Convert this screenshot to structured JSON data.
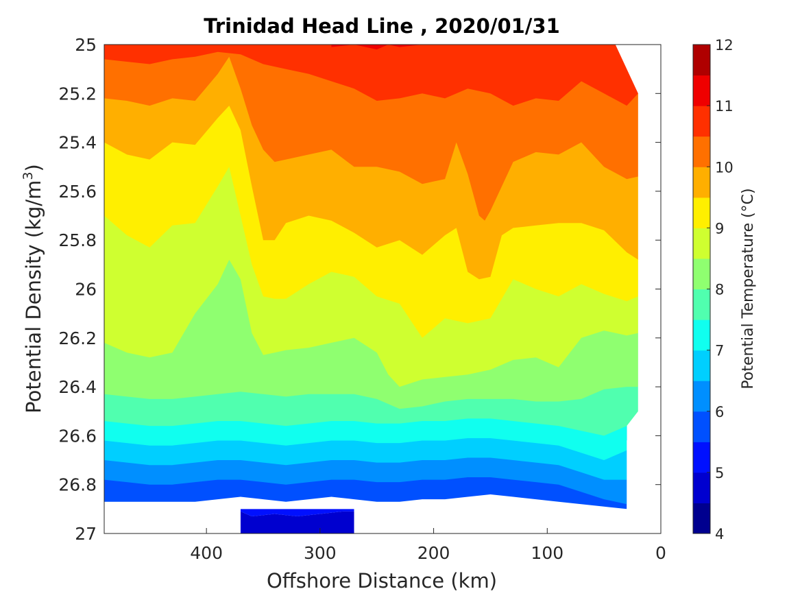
{
  "chart_data": {
    "type": "contour",
    "title": "Trinidad Head Line , 2020/01/31",
    "xlabel": "Offshore Distance (km)",
    "ylabel_main": "Potential Density (kg/m",
    "ylabel_sup": "3",
    "ylabel_end": ")",
    "colorbar_label": "Potential Temperature (°C)",
    "x_reversed": true,
    "xlim": [
      0,
      490
    ],
    "ylim": [
      25,
      27
    ],
    "y_reversed": true,
    "grid": false,
    "xticks": [
      400,
      300,
      200,
      100,
      0
    ],
    "xtick_labels": [
      "400",
      "300",
      "200",
      "100",
      "0"
    ],
    "yticks": [
      25,
      25.2,
      25.4,
      25.6,
      25.8,
      26,
      26.2,
      26.4,
      26.6,
      26.8,
      27
    ],
    "ytick_labels": [
      "25",
      "25.2",
      "25.4",
      "25.6",
      "25.8",
      "26",
      "26.2",
      "26.4",
      "26.6",
      "26.8",
      "27"
    ],
    "colorbar_ticks": [
      "12",
      "11",
      "10",
      "9",
      "8",
      "7",
      "6",
      "5",
      "4"
    ],
    "levels": [
      4,
      4.5,
      5,
      5.5,
      6,
      6.5,
      7,
      7.5,
      8,
      8.5,
      9,
      9.5,
      10,
      10.5,
      11,
      11.5,
      12
    ],
    "level_colors": [
      "#00008f",
      "#0000cf",
      "#0010ff",
      "#0050ff",
      "#008fff",
      "#00cfff",
      "#10ffef",
      "#50ffaf",
      "#8fff70",
      "#cfff30",
      "#ffef00",
      "#ffaf00",
      "#ff7000",
      "#ff3000",
      "#ef0000",
      "#af0000"
    ],
    "contours": [
      {
        "level": 5.5,
        "x": [
          490,
          470,
          450,
          430,
          410,
          390,
          370,
          350,
          330,
          310,
          290,
          270,
          250,
          230,
          210,
          190,
          170,
          150,
          130,
          110,
          90,
          70,
          50,
          30
        ],
        "y": [
          26.87,
          26.87,
          26.87,
          26.87,
          26.87,
          26.86,
          26.85,
          26.86,
          26.87,
          26.86,
          26.85,
          26.86,
          26.87,
          26.87,
          26.86,
          26.86,
          26.85,
          26.84,
          26.85,
          26.86,
          26.87,
          26.88,
          26.89,
          26.9
        ]
      },
      {
        "level": 6.0,
        "x": [
          490,
          470,
          450,
          430,
          410,
          390,
          370,
          350,
          330,
          310,
          290,
          270,
          250,
          230,
          210,
          190,
          170,
          150,
          130,
          110,
          90,
          70,
          50,
          30
        ],
        "y": [
          26.78,
          26.79,
          26.8,
          26.8,
          26.79,
          26.78,
          26.78,
          26.79,
          26.8,
          26.79,
          26.78,
          26.78,
          26.79,
          26.79,
          26.78,
          26.78,
          26.77,
          26.77,
          26.78,
          26.79,
          26.8,
          26.83,
          26.86,
          26.88
        ]
      },
      {
        "level": 6.5,
        "x": [
          490,
          470,
          450,
          430,
          410,
          390,
          370,
          350,
          330,
          310,
          290,
          270,
          250,
          230,
          210,
          190,
          170,
          150,
          130,
          110,
          90,
          70,
          50,
          30
        ],
        "y": [
          26.7,
          26.71,
          26.72,
          26.72,
          26.71,
          26.7,
          26.7,
          26.71,
          26.72,
          26.71,
          26.7,
          26.7,
          26.71,
          26.71,
          26.7,
          26.7,
          26.69,
          26.69,
          26.7,
          26.71,
          26.72,
          26.75,
          26.78,
          26.78
        ]
      },
      {
        "level": 7.0,
        "x": [
          490,
          470,
          450,
          430,
          410,
          390,
          370,
          350,
          330,
          310,
          290,
          270,
          250,
          230,
          210,
          190,
          170,
          150,
          130,
          110,
          90,
          70,
          50,
          30
        ],
        "y": [
          26.62,
          26.63,
          26.64,
          26.64,
          26.63,
          26.62,
          26.62,
          26.63,
          26.64,
          26.63,
          26.62,
          26.62,
          26.63,
          26.63,
          26.62,
          26.62,
          26.61,
          26.61,
          26.62,
          26.63,
          26.64,
          26.67,
          26.7,
          26.66
        ]
      },
      {
        "level": 7.5,
        "x": [
          490,
          470,
          450,
          430,
          410,
          390,
          370,
          350,
          330,
          310,
          290,
          270,
          250,
          230,
          210,
          190,
          170,
          150,
          130,
          110,
          90,
          70,
          50,
          30,
          20
        ],
        "y": [
          26.54,
          26.55,
          26.56,
          26.56,
          26.55,
          26.54,
          26.54,
          26.55,
          26.56,
          26.55,
          26.54,
          26.54,
          26.55,
          26.55,
          26.54,
          26.54,
          26.53,
          26.53,
          26.54,
          26.55,
          26.56,
          26.58,
          26.6,
          26.56,
          26.5
        ]
      },
      {
        "level": 8.0,
        "x": [
          490,
          470,
          450,
          430,
          410,
          390,
          370,
          350,
          330,
          310,
          290,
          270,
          250,
          230,
          210,
          190,
          170,
          150,
          130,
          110,
          90,
          70,
          50,
          30,
          20
        ],
        "y": [
          26.43,
          26.44,
          26.45,
          26.45,
          26.44,
          26.43,
          26.42,
          26.43,
          26.44,
          26.43,
          26.43,
          26.43,
          26.45,
          26.49,
          26.48,
          26.46,
          26.45,
          26.45,
          26.45,
          26.46,
          26.46,
          26.45,
          26.41,
          26.4,
          26.4
        ]
      },
      {
        "level": 8.5,
        "x": [
          490,
          470,
          450,
          430,
          410,
          390,
          380,
          370,
          360,
          350,
          340,
          330,
          310,
          290,
          270,
          250,
          240,
          230,
          210,
          190,
          170,
          150,
          130,
          110,
          90,
          70,
          50,
          30,
          20
        ],
        "y": [
          26.22,
          26.26,
          26.28,
          26.26,
          26.1,
          25.98,
          25.88,
          25.96,
          26.18,
          26.27,
          26.26,
          26.25,
          26.24,
          26.22,
          26.2,
          26.26,
          26.35,
          26.4,
          26.37,
          26.36,
          26.35,
          26.33,
          26.29,
          26.28,
          26.32,
          26.2,
          26.17,
          26.19,
          26.18
        ]
      },
      {
        "level": 9.0,
        "x": [
          490,
          470,
          450,
          430,
          410,
          390,
          380,
          370,
          360,
          350,
          340,
          330,
          310,
          290,
          270,
          250,
          230,
          210,
          190,
          170,
          150,
          130,
          110,
          90,
          70,
          50,
          30,
          20
        ],
        "y": [
          25.7,
          25.78,
          25.83,
          25.74,
          25.73,
          25.58,
          25.5,
          25.7,
          25.9,
          26.03,
          26.04,
          26.04,
          25.98,
          25.93,
          25.95,
          26.03,
          26.06,
          26.2,
          26.12,
          26.14,
          26.12,
          25.96,
          26.0,
          26.03,
          25.98,
          26.02,
          26.05,
          26.03
        ]
      },
      {
        "level": 9.5,
        "x": [
          490,
          470,
          450,
          430,
          410,
          390,
          380,
          370,
          360,
          350,
          340,
          330,
          310,
          290,
          270,
          250,
          230,
          210,
          190,
          180,
          170,
          160,
          150,
          140,
          130,
          110,
          90,
          70,
          50,
          30,
          20
        ],
        "y": [
          25.4,
          25.45,
          25.47,
          25.4,
          25.41,
          25.3,
          25.25,
          25.35,
          25.58,
          25.8,
          25.8,
          25.73,
          25.7,
          25.72,
          25.77,
          25.83,
          25.8,
          25.86,
          25.78,
          25.75,
          25.93,
          25.96,
          25.95,
          25.78,
          25.75,
          25.74,
          25.73,
          25.73,
          25.76,
          25.85,
          25.88
        ]
      },
      {
        "level": 10.0,
        "x": [
          490,
          470,
          450,
          430,
          410,
          390,
          380,
          370,
          360,
          350,
          340,
          330,
          310,
          290,
          270,
          250,
          230,
          210,
          190,
          180,
          170,
          160,
          155,
          150,
          140,
          130,
          110,
          90,
          70,
          50,
          30,
          20
        ],
        "y": [
          25.22,
          25.23,
          25.25,
          25.22,
          25.23,
          25.12,
          25.05,
          25.18,
          25.33,
          25.43,
          25.48,
          25.47,
          25.45,
          25.43,
          25.5,
          25.5,
          25.52,
          25.57,
          25.55,
          25.4,
          25.53,
          25.7,
          25.72,
          25.68,
          25.58,
          25.48,
          25.44,
          25.45,
          25.4,
          25.5,
          25.55,
          25.54
        ]
      },
      {
        "level": 10.5,
        "x": [
          490,
          470,
          450,
          430,
          410,
          390,
          370,
          350,
          330,
          310,
          290,
          270,
          250,
          230,
          210,
          190,
          170,
          150,
          130,
          110,
          90,
          70,
          50,
          30,
          20
        ],
        "y": [
          25.06,
          25.07,
          25.08,
          25.06,
          25.05,
          25.03,
          25.04,
          25.08,
          25.1,
          25.12,
          25.15,
          25.18,
          25.23,
          25.22,
          25.2,
          25.22,
          25.18,
          25.2,
          25.25,
          25.22,
          25.23,
          25.15,
          25.2,
          25.25,
          25.2
        ]
      },
      {
        "level": 11.0,
        "x": [
          290,
          270,
          250,
          240,
          230,
          210
        ],
        "y": [
          25.01,
          25.0,
          25.02,
          25.0,
          25.01,
          25.0
        ]
      }
    ],
    "bottom_tongue": {
      "x": [
        370,
        360,
        340,
        320,
        300,
        280,
        270
      ],
      "y": [
        26.91,
        26.93,
        26.92,
        26.93,
        26.92,
        26.91,
        26.91
      ],
      "deep_level": 5.0
    },
    "data_extent": {
      "max_density_main": 26.9,
      "shelf_x_min": 20
    }
  }
}
